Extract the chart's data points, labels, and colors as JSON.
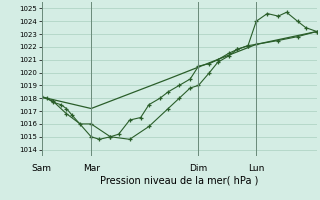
{
  "xlabel": "Pression niveau de la mer( hPa )",
  "background_color": "#d4ede4",
  "grid_color": "#aacfbf",
  "line_color": "#2a5e2a",
  "vline_color": "#6a8a7a",
  "ylim": [
    1013.5,
    1025.5
  ],
  "yticks": [
    1014,
    1015,
    1016,
    1017,
    1018,
    1019,
    1020,
    1021,
    1022,
    1023,
    1024,
    1025
  ],
  "day_labels": [
    "Sam",
    "Mar",
    "Dim",
    "Lun"
  ],
  "day_positions": [
    0,
    0.18,
    0.57,
    0.78
  ],
  "xlim": [
    0,
    1.0
  ],
  "line1_x": [
    0.0,
    0.02,
    0.04,
    0.07,
    0.09,
    0.11,
    0.18,
    0.21,
    0.25,
    0.28,
    0.32,
    0.36,
    0.39,
    0.43,
    0.46,
    0.5,
    0.54,
    0.57,
    0.61,
    0.64,
    0.68,
    0.71,
    0.75,
    0.78,
    0.82,
    0.86,
    0.89,
    0.93,
    0.96,
    1.0
  ],
  "line1_y": [
    1018.1,
    1018.0,
    1017.7,
    1017.5,
    1017.2,
    1016.7,
    1015.0,
    1014.8,
    1015.0,
    1015.2,
    1016.3,
    1016.5,
    1017.5,
    1018.0,
    1018.5,
    1019.0,
    1019.5,
    1020.5,
    1020.7,
    1021.0,
    1021.5,
    1021.8,
    1022.1,
    1024.0,
    1024.6,
    1024.4,
    1024.7,
    1024.0,
    1023.5,
    1023.2
  ],
  "line2_x": [
    0.0,
    0.04,
    0.09,
    0.14,
    0.18,
    0.25,
    0.32,
    0.39,
    0.46,
    0.5,
    0.54,
    0.57,
    0.61,
    0.64,
    0.68,
    0.71,
    0.75,
    0.78,
    0.86,
    0.93,
    1.0
  ],
  "line2_y": [
    1018.1,
    1017.8,
    1016.8,
    1016.0,
    1016.0,
    1015.0,
    1014.8,
    1015.8,
    1017.2,
    1018.0,
    1018.8,
    1019.0,
    1020.0,
    1020.8,
    1021.3,
    1021.8,
    1022.1,
    1022.2,
    1022.5,
    1022.8,
    1023.2
  ],
  "line3_x": [
    0.0,
    0.18,
    0.46,
    0.78,
    1.0
  ],
  "line3_y": [
    1018.1,
    1017.2,
    1019.5,
    1022.2,
    1023.2
  ]
}
